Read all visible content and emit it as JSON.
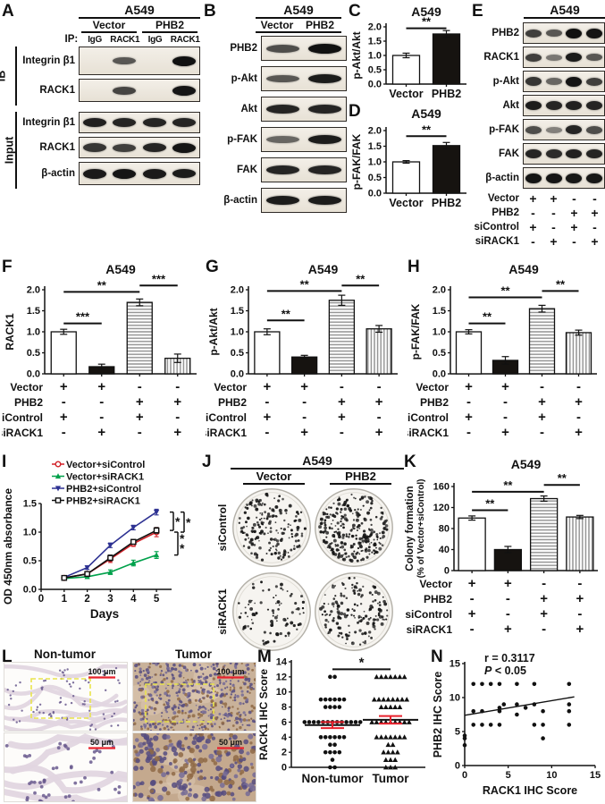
{
  "colors": {
    "ink": "#111111",
    "red": "#d22128",
    "green": "#00a14b",
    "blue": "#2d3192",
    "scalebar_red": "#e8222d",
    "yellow_box": "#e9e44c",
    "stripe_gray": "#8f8f8f",
    "blot_bg": "#f0ece4",
    "dish_bg": "#f6f4f0",
    "tumor_bg": "#c9b29a",
    "nuclei_purple": "#6a5a8e"
  },
  "conditions": {
    "labels": [
      "Vector",
      "PHB2",
      "siControl",
      "siRACK1"
    ],
    "matrix": [
      [
        "+",
        "+",
        "-",
        "-"
      ],
      [
        "-",
        "-",
        "+",
        "+"
      ],
      [
        "+",
        "-",
        "+",
        "-"
      ],
      [
        "-",
        "+",
        "-",
        "+"
      ]
    ]
  },
  "panels": {
    "A": {
      "label": "A",
      "cell_line": "A549",
      "group_headers": [
        "Vector",
        "PHB2"
      ],
      "ip_label": "IP:",
      "lane_headers": [
        "IgG",
        "RACK1",
        "IgG",
        "RACK1"
      ],
      "sections": [
        {
          "side_label": "IB",
          "rows": [
            {
              "label": "Integrin β1",
              "bands": [
                0,
                0.55,
                0,
                0.97
              ]
            },
            {
              "label": "RACK1",
              "bands": [
                0,
                0.65,
                0,
                0.95
              ]
            }
          ]
        },
        {
          "side_label": "Input",
          "rows": [
            {
              "label": "Integrin β1",
              "bands": [
                0.88,
                0.85,
                0.85,
                0.85
              ]
            },
            {
              "label": "RACK1",
              "bands": [
                0.75,
                0.7,
                0.85,
                0.95
              ]
            },
            {
              "label": "β-actin",
              "bands": [
                0.92,
                0.95,
                0.92,
                0.9
              ]
            }
          ]
        }
      ]
    },
    "B": {
      "label": "B",
      "cell_line": "A549",
      "lane_headers": [
        "Vector",
        "PHB2"
      ],
      "rows": [
        {
          "label": "PHB2",
          "bands": [
            0.6,
            0.98
          ]
        },
        {
          "label": "p-Akt",
          "bands": [
            0.55,
            0.9
          ]
        },
        {
          "label": "Akt",
          "bands": [
            0.85,
            0.85
          ]
        },
        {
          "label": "p-FAK",
          "bands": [
            0.45,
            0.9
          ]
        },
        {
          "label": "FAK",
          "bands": [
            0.85,
            0.85
          ]
        },
        {
          "label": "β-actin",
          "bands": [
            0.9,
            0.9
          ]
        }
      ]
    },
    "C": {
      "label": "C"
    },
    "D": {
      "label": "D"
    },
    "E": {
      "label": "E",
      "cell_line": "A549",
      "rows": [
        {
          "label": "PHB2",
          "bands": [
            0.7,
            0.55,
            0.97,
            0.95
          ]
        },
        {
          "label": "RACK1",
          "bands": [
            0.7,
            0.35,
            0.9,
            0.55
          ]
        },
        {
          "label": "p-Akt",
          "bands": [
            0.75,
            0.45,
            0.95,
            0.7
          ]
        },
        {
          "label": "Akt",
          "bands": [
            0.9,
            0.85,
            0.88,
            0.85
          ]
        },
        {
          "label": "p-FAK",
          "bands": [
            0.6,
            0.3,
            0.85,
            0.6
          ]
        },
        {
          "label": "FAK",
          "bands": [
            0.85,
            0.82,
            0.88,
            0.85
          ]
        },
        {
          "label": "β-actin",
          "bands": [
            0.95,
            0.95,
            0.93,
            0.93
          ]
        }
      ]
    },
    "F": {
      "label": "F"
    },
    "G": {
      "label": "G"
    },
    "H": {
      "label": "H"
    },
    "I": {
      "label": "I"
    },
    "J": {
      "label": "J",
      "cell_line": "A549",
      "col_headers": [
        "Vector",
        "PHB2"
      ],
      "row_headers": [
        "siControl",
        "siRACK1"
      ],
      "colony_counts": [
        [
          175,
          270
        ],
        [
          85,
          160
        ]
      ]
    },
    "K": {
      "label": "K"
    },
    "L": {
      "label": "L",
      "col_headers": [
        "Non-tumor",
        "Tumor"
      ],
      "scale_top": "100 μm",
      "scale_bottom": "50 μm"
    },
    "M": {
      "label": "M"
    },
    "N": {
      "label": "N"
    }
  },
  "chart_data": [
    {
      "panel": "C",
      "type": "bar",
      "title": "A549",
      "ylabel": "p-Akt/Akt",
      "ylim": [
        0,
        2.0
      ],
      "ytick_step": 0.5,
      "categories": [
        "Vector",
        "PHB2"
      ],
      "values": [
        1.0,
        1.75
      ],
      "errors": [
        0.08,
        0.12
      ],
      "bar_styles": [
        "white",
        "black"
      ],
      "sig": [
        {
          "a": 0,
          "b": 1,
          "y": 1.95,
          "label": "**"
        }
      ]
    },
    {
      "panel": "D",
      "type": "bar",
      "title": "A549",
      "ylabel": "p-FAK/FAK",
      "ylim": [
        0,
        2.0
      ],
      "ytick_step": 0.5,
      "categories": [
        "Vector",
        "PHB2"
      ],
      "values": [
        1.0,
        1.52
      ],
      "errors": [
        0.04,
        0.1
      ],
      "bar_styles": [
        "white",
        "black"
      ],
      "sig": [
        {
          "a": 0,
          "b": 1,
          "y": 1.82,
          "label": "**"
        }
      ]
    },
    {
      "panel": "F",
      "type": "bar",
      "title": "A549",
      "ylabel": "RACK1",
      "ylim": [
        0,
        2.0
      ],
      "ytick_step": 0.5,
      "values": [
        1.0,
        0.17,
        1.7,
        0.37
      ],
      "errors": [
        0.06,
        0.06,
        0.08,
        0.1
      ],
      "bar_styles": [
        "white",
        "black",
        "hstripe",
        "vstripe"
      ],
      "conditions": true,
      "sig": [
        {
          "a": 0,
          "b": 1,
          "y": 1.2,
          "label": "***"
        },
        {
          "a": 0,
          "b": 2,
          "y": 1.95,
          "label": "**"
        },
        {
          "a": 2,
          "b": 3,
          "y": 2.1,
          "label": "***"
        }
      ]
    },
    {
      "panel": "G",
      "type": "bar",
      "title": "A549",
      "ylabel": "p-Akt/Akt",
      "ylim": [
        0,
        2.0
      ],
      "ytick_step": 0.5,
      "values": [
        1.0,
        0.4,
        1.75,
        1.07
      ],
      "errors": [
        0.07,
        0.04,
        0.12,
        0.08
      ],
      "bar_styles": [
        "white",
        "black",
        "hstripe",
        "vstripe"
      ],
      "conditions": true,
      "sig": [
        {
          "a": 0,
          "b": 1,
          "y": 1.27,
          "label": "**"
        },
        {
          "a": 0,
          "b": 2,
          "y": 1.97,
          "label": "**"
        },
        {
          "a": 2,
          "b": 3,
          "y": 2.1,
          "label": "**"
        }
      ]
    },
    {
      "panel": "H",
      "type": "bar",
      "title": "A549",
      "ylabel": "p-FAK/FAK",
      "ylim": [
        0,
        2.0
      ],
      "ytick_step": 0.5,
      "values": [
        1.0,
        0.32,
        1.55,
        0.98
      ],
      "errors": [
        0.05,
        0.09,
        0.08,
        0.06
      ],
      "bar_styles": [
        "white",
        "black",
        "hstripe",
        "vstripe"
      ],
      "conditions": true,
      "sig": [
        {
          "a": 0,
          "b": 1,
          "y": 1.2,
          "label": "**"
        },
        {
          "a": 0,
          "b": 2,
          "y": 1.82,
          "label": "**"
        },
        {
          "a": 2,
          "b": 3,
          "y": 1.97,
          "label": "**"
        }
      ]
    },
    {
      "panel": "K",
      "type": "bar",
      "title": "A549",
      "ylabel_lines": [
        "Colony formation",
        "(% of Vector+siControl)"
      ],
      "ylim": [
        0,
        160
      ],
      "ytick_step": 40,
      "values": [
        100,
        40,
        137,
        102
      ],
      "errors": [
        4,
        6,
        5,
        3
      ],
      "bar_styles": [
        "white",
        "black",
        "hstripe",
        "vstripe"
      ],
      "conditions": true,
      "sig": [
        {
          "a": 0,
          "b": 1,
          "y": 115,
          "label": "**"
        },
        {
          "a": 0,
          "b": 2,
          "y": 150,
          "label": "**"
        },
        {
          "a": 2,
          "b": 3,
          "y": 163,
          "label": "**"
        }
      ]
    },
    {
      "panel": "I",
      "type": "line",
      "xlabel": "Days",
      "ylabel": "OD 450nm absorbance",
      "x": [
        1,
        2,
        3,
        4,
        5
      ],
      "xlim": [
        0,
        5.5
      ],
      "xticks": [
        0,
        1,
        2,
        3,
        4,
        5
      ],
      "ylim": [
        0,
        1.5
      ],
      "ytick_step": 0.5,
      "series": [
        {
          "name": "Vector+siControl",
          "color": "#d22128",
          "marker": "circle-open",
          "values": [
            0.2,
            0.27,
            0.53,
            0.8,
            1.0
          ],
          "errors": [
            0.02,
            0.02,
            0.06,
            0.05,
            0.08
          ]
        },
        {
          "name": "Vector+siRACK1",
          "color": "#00a14b",
          "marker": "triangle",
          "values": [
            0.19,
            0.22,
            0.3,
            0.46,
            0.6
          ],
          "errors": [
            0.02,
            0.02,
            0.04,
            0.05,
            0.06
          ]
        },
        {
          "name": "PHB2+siControl",
          "color": "#2d3192",
          "marker": "triangle-down",
          "values": [
            0.21,
            0.38,
            0.77,
            1.08,
            1.35
          ],
          "errors": [
            0.02,
            0.03,
            0.04,
            0.04,
            0.05
          ]
        },
        {
          "name": "PHB2+siRACK1",
          "color": "#111111",
          "marker": "square-open",
          "values": [
            0.2,
            0.27,
            0.55,
            0.83,
            1.03
          ],
          "errors": [
            0.02,
            0.02,
            0.05,
            0.04,
            0.05
          ]
        }
      ],
      "sig": [
        {
          "a": 2,
          "b": 3,
          "label": "*",
          "off": 6
        },
        {
          "a": 2,
          "b": 0,
          "label": "*",
          "off": 18
        },
        {
          "a": 0,
          "b": 1,
          "label": "**",
          "off": 11
        }
      ]
    },
    {
      "panel": "M",
      "type": "scatter-column",
      "ylabel": "RACK1 IHC Score",
      "ylim": [
        0,
        14
      ],
      "ytick_step": 2,
      "categories": [
        "Non-tumor",
        "Tumor"
      ],
      "groups": [
        {
          "name": "Non-tumor",
          "marker": "circle",
          "mean": 5.6,
          "sem": 0.4,
          "score_counts": {
            "0": 2,
            "1": 1,
            "2": 4,
            "3": 2,
            "4": 6,
            "6": 13,
            "8": 4,
            "9": 6,
            "12": 2
          }
        },
        {
          "name": "Tumor",
          "marker": "triangle",
          "mean": 6.3,
          "sem": 0.5,
          "score_counts": {
            "0": 3,
            "1": 3,
            "2": 4,
            "3": 2,
            "4": 7,
            "6": 9,
            "8": 5,
            "9": 8,
            "12": 7
          }
        }
      ],
      "sig": [
        {
          "a": 0,
          "b": 1,
          "y": 13,
          "label": "*"
        }
      ]
    },
    {
      "panel": "N",
      "type": "scatter",
      "xlabel": "RACK1 IHC Score",
      "ylabel": "PHB2 IHC Score",
      "xlim": [
        0,
        15
      ],
      "ylim": [
        0,
        15
      ],
      "xticks": [
        0,
        5,
        10,
        15
      ],
      "yticks": [
        0,
        5,
        10,
        15
      ],
      "annotation": [
        "r = 0.3117",
        "P < 0.05"
      ],
      "points": [
        [
          0,
          3
        ],
        [
          0,
          4
        ],
        [
          0,
          4.4
        ],
        [
          1,
          6
        ],
        [
          1,
          8
        ],
        [
          1,
          12
        ],
        [
          2,
          6
        ],
        [
          2,
          8
        ],
        [
          2,
          12
        ],
        [
          3,
          6
        ],
        [
          3,
          12
        ],
        [
          4,
          6
        ],
        [
          4,
          8
        ],
        [
          4,
          8.5
        ],
        [
          4,
          12
        ],
        [
          4.5,
          9
        ],
        [
          6,
          7.5
        ],
        [
          6,
          9
        ],
        [
          6,
          12
        ],
        [
          7,
          8.5
        ],
        [
          8,
          6
        ],
        [
          8,
          9
        ],
        [
          8,
          12
        ],
        [
          9,
          4
        ],
        [
          9,
          6
        ],
        [
          9,
          8
        ],
        [
          12,
          6
        ],
        [
          12,
          8
        ],
        [
          12,
          9
        ],
        [
          12,
          12
        ]
      ],
      "trend": {
        "x1": 0,
        "y1": 7.4,
        "x2": 12.6,
        "y2": 10.1
      }
    }
  ]
}
